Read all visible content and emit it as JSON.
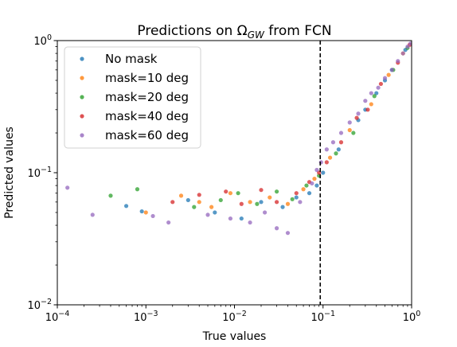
{
  "chart_data": {
    "type": "scatter",
    "title": {
      "main": "Predictions on Ω",
      "sub": "GW",
      "rest": " from FCN"
    },
    "xlabel": "True values",
    "ylabel": "Predicted values",
    "xscale": "log",
    "yscale": "log",
    "xlim": [
      0.0001,
      1
    ],
    "ylim": [
      0.01,
      1
    ],
    "x_ticks": [
      {
        "value": 0.0001,
        "base": "10",
        "exp": "−4"
      },
      {
        "value": 0.001,
        "base": "10",
        "exp": "−3"
      },
      {
        "value": 0.01,
        "base": "10",
        "exp": "−2"
      },
      {
        "value": 0.1,
        "base": "10",
        "exp": "−1"
      },
      {
        "value": 1,
        "base": "10",
        "exp": "0"
      }
    ],
    "y_ticks": [
      {
        "value": 0.01,
        "base": "10",
        "exp": "−2"
      },
      {
        "value": 0.1,
        "base": "10",
        "exp": "−1"
      },
      {
        "value": 1,
        "base": "10",
        "exp": "0"
      }
    ],
    "vline": {
      "x": 0.093,
      "style": "dashed",
      "color": "#000000"
    },
    "grid": false,
    "legend_position": "top-left",
    "series": [
      {
        "name": "No mask",
        "color": "#1f77b4",
        "points": [
          [
            0.0006,
            0.056
          ],
          [
            0.0009,
            0.051
          ],
          [
            0.003,
            0.062
          ],
          [
            0.006,
            0.05
          ],
          [
            0.012,
            0.045
          ],
          [
            0.02,
            0.06
          ],
          [
            0.035,
            0.055
          ],
          [
            0.05,
            0.065
          ],
          [
            0.07,
            0.07
          ],
          [
            0.085,
            0.08
          ],
          [
            0.1,
            0.1
          ],
          [
            0.15,
            0.15
          ],
          [
            0.25,
            0.25
          ],
          [
            0.4,
            0.4
          ],
          [
            0.6,
            0.6
          ],
          [
            0.85,
            0.85
          ],
          [
            0.3,
            0.3
          ],
          [
            0.5,
            0.5
          ]
        ]
      },
      {
        "name": "mask=10 deg",
        "color": "#ff7f0e",
        "points": [
          [
            0.001,
            0.05
          ],
          [
            0.0025,
            0.067
          ],
          [
            0.004,
            0.06
          ],
          [
            0.0055,
            0.055
          ],
          [
            0.009,
            0.07
          ],
          [
            0.015,
            0.06
          ],
          [
            0.025,
            0.065
          ],
          [
            0.04,
            0.058
          ],
          [
            0.06,
            0.075
          ],
          [
            0.08,
            0.09
          ],
          [
            0.12,
            0.13
          ],
          [
            0.2,
            0.21
          ],
          [
            0.35,
            0.33
          ],
          [
            0.55,
            0.55
          ],
          [
            0.8,
            0.8
          ]
        ]
      },
      {
        "name": "mask=20 deg",
        "color": "#2ca02c",
        "points": [
          [
            0.0004,
            0.067
          ],
          [
            0.0008,
            0.075
          ],
          [
            0.0035,
            0.055
          ],
          [
            0.007,
            0.062
          ],
          [
            0.011,
            0.07
          ],
          [
            0.018,
            0.058
          ],
          [
            0.03,
            0.072
          ],
          [
            0.045,
            0.063
          ],
          [
            0.065,
            0.08
          ],
          [
            0.09,
            0.095
          ],
          [
            0.14,
            0.14
          ],
          [
            0.22,
            0.2
          ],
          [
            0.38,
            0.38
          ],
          [
            0.62,
            0.6
          ],
          [
            0.9,
            0.88
          ]
        ]
      },
      {
        "name": "mask=40 deg",
        "color": "#d62728",
        "points": [
          [
            0.002,
            0.06
          ],
          [
            0.004,
            0.068
          ],
          [
            0.008,
            0.072
          ],
          [
            0.012,
            0.058
          ],
          [
            0.02,
            0.074
          ],
          [
            0.03,
            0.06
          ],
          [
            0.05,
            0.07
          ],
          [
            0.07,
            0.085
          ],
          [
            0.09,
            0.1
          ],
          [
            0.11,
            0.12
          ],
          [
            0.16,
            0.17
          ],
          [
            0.24,
            0.26
          ],
          [
            0.32,
            0.3
          ],
          [
            0.45,
            0.47
          ],
          [
            0.7,
            0.68
          ],
          [
            0.95,
            0.93
          ]
        ]
      },
      {
        "name": "mask=60 deg",
        "color": "#9467bd",
        "points": [
          [
            0.00013,
            0.077
          ],
          [
            0.00025,
            0.048
          ],
          [
            0.0012,
            0.047
          ],
          [
            0.0018,
            0.042
          ],
          [
            0.005,
            0.048
          ],
          [
            0.009,
            0.045
          ],
          [
            0.015,
            0.042
          ],
          [
            0.022,
            0.05
          ],
          [
            0.03,
            0.038
          ],
          [
            0.04,
            0.035
          ],
          [
            0.055,
            0.06
          ],
          [
            0.075,
            0.083
          ],
          [
            0.085,
            0.105
          ],
          [
            0.095,
            0.12
          ],
          [
            0.11,
            0.15
          ],
          [
            0.13,
            0.17
          ],
          [
            0.16,
            0.2
          ],
          [
            0.2,
            0.24
          ],
          [
            0.25,
            0.28
          ],
          [
            0.3,
            0.35
          ],
          [
            0.35,
            0.4
          ],
          [
            0.42,
            0.44
          ],
          [
            0.5,
            0.52
          ],
          [
            0.6,
            0.6
          ],
          [
            0.7,
            0.7
          ],
          [
            0.8,
            0.8
          ],
          [
            0.9,
            0.9
          ],
          [
            0.97,
            0.95
          ]
        ]
      }
    ]
  }
}
